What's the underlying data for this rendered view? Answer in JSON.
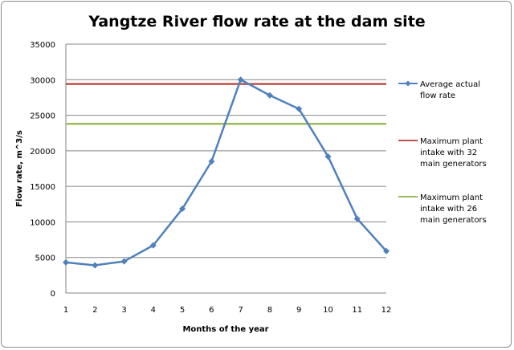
{
  "chart_data": {
    "type": "line",
    "title": "Yangtze River flow rate at the dam site",
    "xlabel": "Months of the year",
    "ylabel": "Flow rate, m^3/s",
    "categories": [
      "1",
      "2",
      "3",
      "4",
      "5",
      "6",
      "7",
      "8",
      "9",
      "10",
      "11",
      "12"
    ],
    "ylim": [
      0,
      35000
    ],
    "yticks": [
      0,
      5000,
      10000,
      15000,
      20000,
      25000,
      30000,
      35000
    ],
    "grid": true,
    "legend_position": "right",
    "series": [
      {
        "name": "Average actual flow rate",
        "color": "#4f81bd",
        "marker": "diamond",
        "values": [
          4300,
          3900,
          4450,
          6700,
          11850,
          18500,
          30000,
          27800,
          25900,
          19200,
          10450,
          5900
        ]
      },
      {
        "name": "Maximum plant intake with 32 main generators",
        "color": "#c0504d",
        "constant": 29400
      },
      {
        "name": "Maximum plant intake with 26 main generators",
        "color": "#9bbb59",
        "constant": 23800
      }
    ]
  }
}
